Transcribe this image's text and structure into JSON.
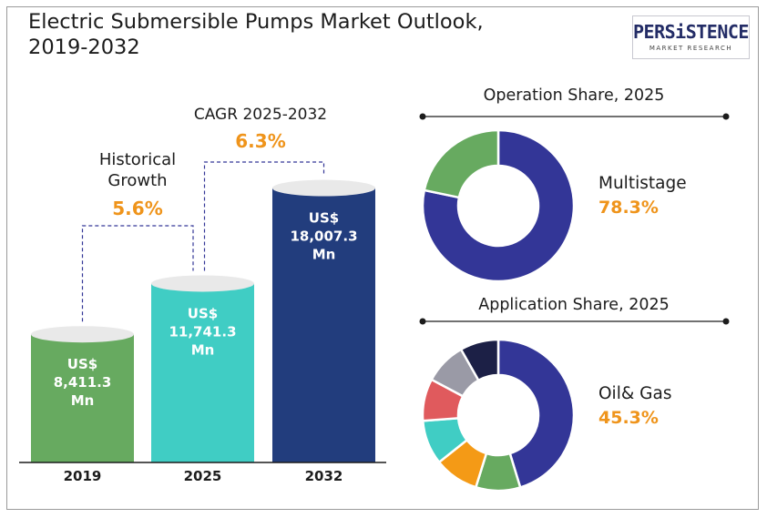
{
  "title": {
    "line1": "Electric Submersible Pumps Market Outlook,",
    "line2": "2019-2032"
  },
  "logo": {
    "main": "PERSiSTENCE",
    "sub": "MARKET RESEARCH"
  },
  "colors": {
    "bar_2019": "#67aa60",
    "bar_2025": "#40cdc4",
    "bar_2032": "#223d7d",
    "highlight": "#ef941b",
    "navy": "#333697",
    "green": "#67aa60",
    "dark": "#1c1c1c"
  },
  "chart_data": [
    {
      "type": "bar",
      "categories": [
        "2019",
        "2025",
        "2032"
      ],
      "values": [
        8411.3,
        11741.3,
        18007.3
      ],
      "data_labels": [
        [
          "US$",
          "8,411.3",
          "Mn"
        ],
        [
          "US$",
          "11,741.3",
          "Mn"
        ],
        [
          "US$",
          "18,007.3",
          "Mn"
        ]
      ],
      "annotations": [
        {
          "label_lines": [
            "Historical",
            "Growth"
          ],
          "value": "5.6%"
        },
        {
          "label_lines": [
            "CAGR 2025-2032"
          ],
          "value": "6.3%"
        }
      ]
    },
    {
      "type": "pie",
      "title": "Operation Share, 2025",
      "slices": [
        {
          "name": "Multistage",
          "value": 78.3,
          "color": "#333697"
        },
        {
          "name": "",
          "value": 21.7,
          "color": "#67aa60"
        }
      ],
      "highlight": {
        "name": "Multistage",
        "value": "78.3%"
      }
    },
    {
      "type": "pie",
      "title": "Application Share, 2025",
      "slices": [
        {
          "name": "Oil& Gas",
          "value": 45.3,
          "color": "#333697"
        },
        {
          "name": "",
          "value": 9.5,
          "color": "#67aa60"
        },
        {
          "name": "",
          "value": 9.5,
          "color": "#f49a16"
        },
        {
          "name": "",
          "value": 9.5,
          "color": "#40cdc4"
        },
        {
          "name": "",
          "value": 9.0,
          "color": "#e05a5d"
        },
        {
          "name": "",
          "value": 9.0,
          "color": "#9a9aa6"
        },
        {
          "name": "",
          "value": 8.2,
          "color": "#1c2046"
        }
      ],
      "highlight": {
        "name": "Oil& Gas",
        "value": "45.3%"
      }
    }
  ]
}
